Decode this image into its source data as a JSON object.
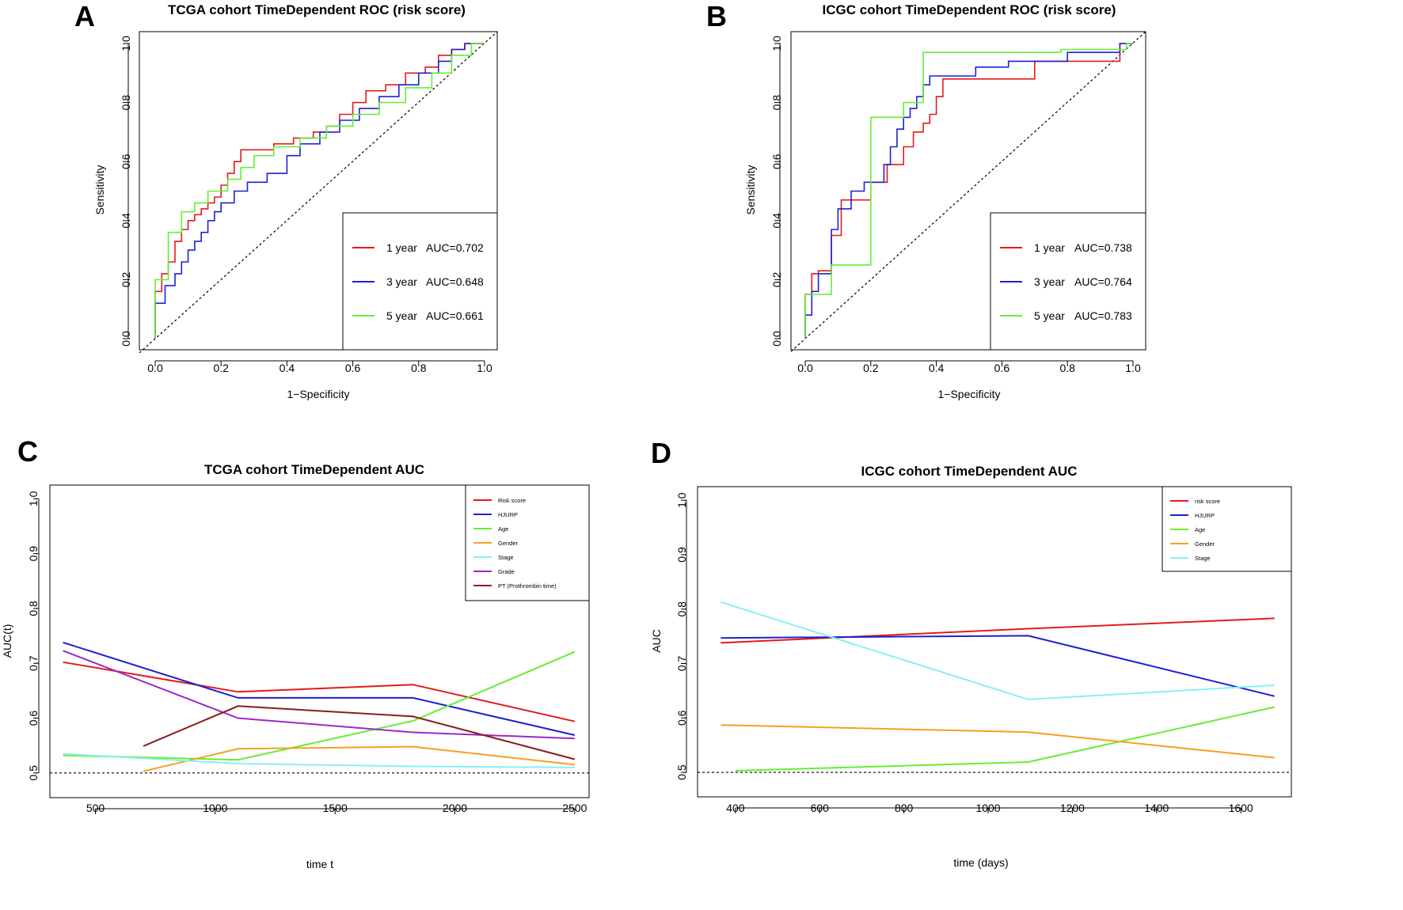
{
  "chart_data": [
    {
      "panel": "A",
      "type": "line",
      "title": "TCGA cohort TimeDependent ROC (risk score)",
      "xlabel": "1−Specificity",
      "ylabel": "Sensitivity",
      "xlim": [
        0,
        1
      ],
      "ylim": [
        0,
        1
      ],
      "xticks": [
        "0.0",
        "0.2",
        "0.4",
        "0.6",
        "0.8",
        "1.0"
      ],
      "yticks": [
        "0.0",
        "0.2",
        "0.4",
        "0.6",
        "0.8",
        "1.0"
      ],
      "diagonal": true,
      "legend_position": "bottom-right",
      "series": [
        {
          "name": "1 year",
          "auc": "AUC=0.702",
          "color": "#e41a1c",
          "step": true,
          "x": [
            0.0,
            0.0,
            0.02,
            0.02,
            0.04,
            0.04,
            0.06,
            0.06,
            0.08,
            0.08,
            0.1,
            0.1,
            0.12,
            0.12,
            0.14,
            0.14,
            0.16,
            0.16,
            0.18,
            0.18,
            0.2,
            0.2,
            0.22,
            0.22,
            0.24,
            0.24,
            0.26,
            0.26,
            0.36,
            0.36,
            0.42,
            0.42,
            0.48,
            0.48,
            0.52,
            0.52,
            0.56,
            0.56,
            0.6,
            0.6,
            0.64,
            0.64,
            0.7,
            0.7,
            0.76,
            0.76,
            0.82,
            0.82,
            0.86,
            0.86,
            0.9,
            0.9,
            0.94,
            0.94,
            1.0
          ],
          "y": [
            0.0,
            0.16,
            0.16,
            0.22,
            0.22,
            0.26,
            0.26,
            0.33,
            0.33,
            0.37,
            0.37,
            0.4,
            0.4,
            0.42,
            0.42,
            0.44,
            0.44,
            0.46,
            0.46,
            0.48,
            0.48,
            0.52,
            0.52,
            0.56,
            0.56,
            0.6,
            0.6,
            0.64,
            0.64,
            0.66,
            0.66,
            0.68,
            0.68,
            0.7,
            0.7,
            0.72,
            0.72,
            0.76,
            0.76,
            0.8,
            0.8,
            0.84,
            0.84,
            0.86,
            0.86,
            0.9,
            0.9,
            0.92,
            0.92,
            0.96,
            0.96,
            0.98,
            0.98,
            1.0,
            1.0
          ]
        },
        {
          "name": "3 year",
          "auc": "AUC=0.648",
          "color": "#2020d0",
          "step": true,
          "x": [
            0.0,
            0.0,
            0.03,
            0.03,
            0.06,
            0.06,
            0.08,
            0.08,
            0.1,
            0.1,
            0.12,
            0.12,
            0.14,
            0.14,
            0.16,
            0.16,
            0.18,
            0.18,
            0.2,
            0.2,
            0.24,
            0.24,
            0.28,
            0.28,
            0.34,
            0.34,
            0.4,
            0.4,
            0.44,
            0.44,
            0.5,
            0.5,
            0.56,
            0.56,
            0.62,
            0.62,
            0.68,
            0.68,
            0.74,
            0.74,
            0.8,
            0.8,
            0.86,
            0.86,
            0.9,
            0.9,
            0.94,
            0.94,
            1.0
          ],
          "y": [
            0.0,
            0.12,
            0.12,
            0.18,
            0.18,
            0.22,
            0.22,
            0.26,
            0.26,
            0.3,
            0.3,
            0.33,
            0.33,
            0.36,
            0.36,
            0.4,
            0.4,
            0.43,
            0.43,
            0.46,
            0.46,
            0.5,
            0.5,
            0.53,
            0.53,
            0.56,
            0.56,
            0.62,
            0.62,
            0.66,
            0.66,
            0.7,
            0.7,
            0.74,
            0.74,
            0.78,
            0.78,
            0.82,
            0.82,
            0.86,
            0.86,
            0.9,
            0.9,
            0.94,
            0.94,
            0.98,
            0.98,
            1.0,
            1.0
          ]
        },
        {
          "name": "5 year",
          "auc": "AUC=0.661",
          "color": "#66ee33",
          "step": true,
          "x": [
            0.0,
            0.0,
            0.04,
            0.04,
            0.08,
            0.08,
            0.12,
            0.12,
            0.16,
            0.16,
            0.22,
            0.22,
            0.26,
            0.26,
            0.3,
            0.3,
            0.36,
            0.36,
            0.44,
            0.44,
            0.52,
            0.52,
            0.6,
            0.6,
            0.68,
            0.68,
            0.76,
            0.76,
            0.84,
            0.84,
            0.9,
            0.9,
            0.96,
            0.96,
            1.0
          ],
          "y": [
            0.0,
            0.2,
            0.2,
            0.36,
            0.36,
            0.43,
            0.43,
            0.46,
            0.46,
            0.5,
            0.5,
            0.54,
            0.54,
            0.58,
            0.58,
            0.62,
            0.62,
            0.65,
            0.65,
            0.68,
            0.68,
            0.72,
            0.72,
            0.76,
            0.76,
            0.8,
            0.8,
            0.85,
            0.85,
            0.9,
            0.9,
            0.96,
            0.96,
            1.0,
            1.0
          ]
        }
      ]
    },
    {
      "panel": "B",
      "type": "line",
      "title": "ICGC cohort TimeDependent ROC (risk score)",
      "xlabel": "1−Specificity",
      "ylabel": "Sensitivity",
      "xlim": [
        0,
        1
      ],
      "ylim": [
        0,
        1
      ],
      "xticks": [
        "0.0",
        "0.2",
        "0.4",
        "0.6",
        "0.8",
        "1.0"
      ],
      "yticks": [
        "0.0",
        "0.2",
        "0.4",
        "0.6",
        "0.8",
        "1.0"
      ],
      "diagonal": true,
      "legend_position": "bottom-right",
      "series": [
        {
          "name": "1 year",
          "auc": "AUC=0.738",
          "color": "#e41a1c",
          "step": true,
          "x": [
            0.0,
            0.0,
            0.02,
            0.02,
            0.04,
            0.04,
            0.08,
            0.08,
            0.11,
            0.11,
            0.2,
            0.2,
            0.25,
            0.25,
            0.3,
            0.3,
            0.33,
            0.33,
            0.36,
            0.36,
            0.38,
            0.38,
            0.4,
            0.4,
            0.42,
            0.42,
            0.56,
            0.56,
            0.7,
            0.7,
            0.96,
            0.96,
            1.0
          ],
          "y": [
            0.0,
            0.15,
            0.15,
            0.22,
            0.22,
            0.23,
            0.23,
            0.35,
            0.35,
            0.47,
            0.47,
            0.53,
            0.53,
            0.59,
            0.59,
            0.65,
            0.65,
            0.7,
            0.7,
            0.73,
            0.73,
            0.76,
            0.76,
            0.82,
            0.82,
            0.88,
            0.88,
            0.88,
            0.88,
            0.94,
            0.94,
            1.0,
            1.0
          ]
        },
        {
          "name": "3 year",
          "auc": "AUC=0.764",
          "color": "#2020d0",
          "step": true,
          "x": [
            0.0,
            0.0,
            0.02,
            0.02,
            0.04,
            0.04,
            0.08,
            0.08,
            0.1,
            0.1,
            0.14,
            0.14,
            0.18,
            0.18,
            0.24,
            0.24,
            0.26,
            0.26,
            0.28,
            0.28,
            0.3,
            0.3,
            0.32,
            0.32,
            0.34,
            0.34,
            0.36,
            0.36,
            0.38,
            0.38,
            0.52,
            0.52,
            0.62,
            0.62,
            0.8,
            0.8,
            0.96,
            0.96,
            1.0
          ],
          "y": [
            0.0,
            0.08,
            0.08,
            0.16,
            0.16,
            0.22,
            0.22,
            0.37,
            0.37,
            0.44,
            0.44,
            0.5,
            0.5,
            0.53,
            0.53,
            0.59,
            0.59,
            0.65,
            0.65,
            0.71,
            0.71,
            0.75,
            0.75,
            0.78,
            0.78,
            0.82,
            0.82,
            0.86,
            0.86,
            0.89,
            0.89,
            0.92,
            0.92,
            0.94,
            0.94,
            0.97,
            0.97,
            1.0,
            1.0
          ]
        },
        {
          "name": "5 year",
          "auc": "AUC=0.783",
          "color": "#66ee33",
          "step": true,
          "x": [
            0.0,
            0.0,
            0.08,
            0.08,
            0.2,
            0.2,
            0.3,
            0.3,
            0.36,
            0.36,
            0.36,
            0.4,
            0.4,
            0.46,
            0.46,
            0.78,
            0.78,
            0.98,
            0.98,
            1.0
          ],
          "y": [
            0.0,
            0.15,
            0.15,
            0.25,
            0.25,
            0.75,
            0.75,
            0.8,
            0.8,
            0.85,
            0.97,
            0.97,
            0.97,
            0.97,
            0.97,
            0.97,
            0.98,
            0.98,
            1.0,
            1.0
          ]
        }
      ]
    },
    {
      "panel": "C",
      "type": "line",
      "title": "TCGA cohort TimeDependent AUC",
      "xlabel": "time t",
      "ylabel": "AUC(t)",
      "xlim": [
        310,
        2560
      ],
      "ylim": [
        0.455,
        1.025
      ],
      "xticks": [
        "500",
        "1000",
        "1500",
        "2000",
        "2500"
      ],
      "xtick_values": [
        500,
        1000,
        1500,
        2000,
        2500
      ],
      "yticks": [
        "0.5",
        "0.6",
        "0.7",
        "0.8",
        "0.9",
        "1.0"
      ],
      "reference_line": 0.5,
      "legend_position": "top-right",
      "series": [
        {
          "name": "Risk score",
          "color": "#e41a1c",
          "x": [
            365,
            1095,
            1825,
            2500
          ],
          "y": [
            0.702,
            0.648,
            0.661,
            0.594
          ]
        },
        {
          "name": "HJURP",
          "color": "#2020d0",
          "x": [
            365,
            1095,
            1825,
            2500
          ],
          "y": [
            0.738,
            0.637,
            0.637,
            0.569
          ]
        },
        {
          "name": "Age",
          "color": "#66ee33",
          "x": [
            365,
            1095,
            1825,
            2500
          ],
          "y": [
            0.532,
            0.524,
            0.595,
            0.721
          ]
        },
        {
          "name": "Gender",
          "color": "#f5a020",
          "x": [
            700,
            1095,
            1825,
            2500
          ],
          "y": [
            0.503,
            0.544,
            0.548,
            0.515
          ]
        },
        {
          "name": "Stage",
          "color": "#88f0f0",
          "x": [
            365,
            1095,
            1825,
            2500
          ],
          "y": [
            0.535,
            0.517,
            0.512,
            0.51
          ]
        },
        {
          "name": "Grade",
          "color": "#9a28c8",
          "x": [
            365,
            1095,
            1825,
            2500
          ],
          "y": [
            0.723,
            0.6,
            0.574,
            0.563
          ]
        },
        {
          "name": "PT (Prothrombin time)",
          "color": "#8a1c1c",
          "x": [
            700,
            1095,
            1825,
            2500
          ],
          "y": [
            0.549,
            0.622,
            0.603,
            0.525
          ]
        }
      ]
    },
    {
      "panel": "D",
      "type": "line",
      "title": "ICGC cohort TimeDependent AUC",
      "xlabel": "time (days)",
      "ylabel": "AUC",
      "xlim": [
        310,
        1720
      ],
      "ylim": [
        0.455,
        1.025
      ],
      "xticks": [
        "400",
        "600",
        "800",
        "1000",
        "1200",
        "1400",
        "1600"
      ],
      "xtick_values": [
        400,
        600,
        800,
        1000,
        1200,
        1400,
        1600
      ],
      "yticks": [
        "0.5",
        "0.6",
        "0.7",
        "0.8",
        "0.9",
        "1.0"
      ],
      "reference_line": 0.5,
      "legend_position": "top-right",
      "series": [
        {
          "name": "risk score",
          "color": "#e41a1c",
          "x": [
            365,
            1095,
            1680
          ],
          "y": [
            0.738,
            0.764,
            0.783
          ]
        },
        {
          "name": "HJURP",
          "color": "#2020d0",
          "x": [
            365,
            1095,
            1680
          ],
          "y": [
            0.747,
            0.751,
            0.64
          ]
        },
        {
          "name": "Age",
          "color": "#66ee33",
          "x": [
            400,
            1095,
            1680
          ],
          "y": [
            0.503,
            0.519,
            0.62
          ]
        },
        {
          "name": "Gender",
          "color": "#f5a020",
          "x": [
            365,
            1095,
            1680
          ],
          "y": [
            0.587,
            0.574,
            0.527
          ]
        },
        {
          "name": "Stage",
          "color": "#88f0f0",
          "x": [
            365,
            1095,
            1680
          ],
          "y": [
            0.813,
            0.634,
            0.66
          ]
        }
      ]
    }
  ]
}
